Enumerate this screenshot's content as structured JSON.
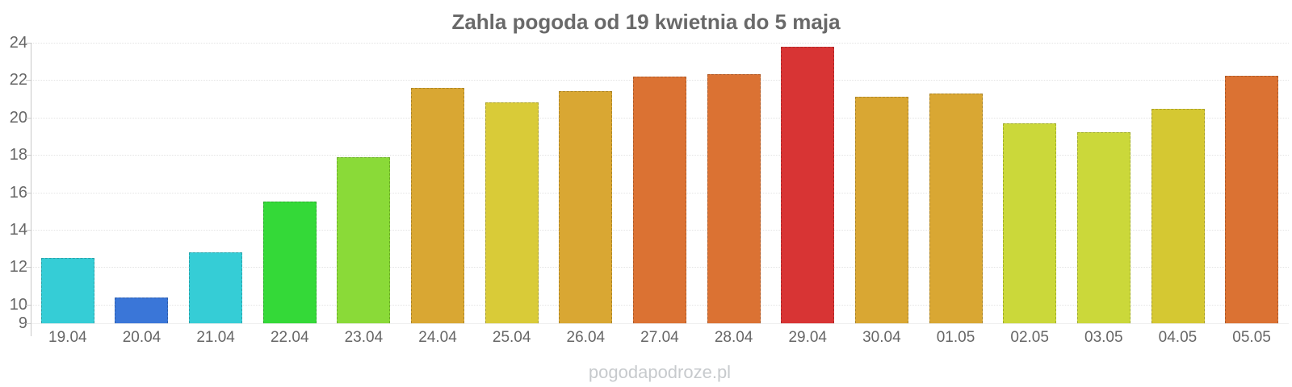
{
  "chart_data": {
    "type": "bar",
    "title": "Zahla pogoda od 19 kwietnia do 5 maja",
    "categories": [
      "19.04",
      "20.04",
      "21.04",
      "22.04",
      "23.04",
      "24.04",
      "25.04",
      "26.04",
      "27.04",
      "28.04",
      "29.04",
      "30.04",
      "01.05",
      "02.05",
      "03.05",
      "04.05",
      "05.05"
    ],
    "values": [
      12.5,
      10.4,
      12.8,
      15.5,
      17.9,
      21.6,
      20.8,
      21.4,
      22.2,
      22.3,
      23.8,
      21.1,
      21.3,
      19.7,
      19.2,
      20.45,
      22.25
    ],
    "bar_colors": [
      "#35cdd6",
      "#3a76d8",
      "#35cdd6",
      "#34d938",
      "#8ada38",
      "#d9a733",
      "#d9cb38",
      "#d9a733",
      "#db7233",
      "#db7233",
      "#d83434",
      "#d9a733",
      "#d9a733",
      "#cbd83a",
      "#cbd83a",
      "#d5c832",
      "#db7233"
    ],
    "xlabel": "",
    "ylabel": "",
    "ylim": [
      9,
      24
    ],
    "yticks": [
      9,
      10,
      12,
      14,
      16,
      18,
      20,
      22,
      24
    ],
    "grid": "horizontal-dotted",
    "legend": "none"
  },
  "colors": {
    "title_text": "#696969",
    "axis_label_text": "#666666",
    "axis_line": "#c9c9c9",
    "gridline": "#e4e4e4",
    "watermark_text": "#c7cacd"
  },
  "watermark": {
    "text": "pogodapodroze.pl"
  }
}
